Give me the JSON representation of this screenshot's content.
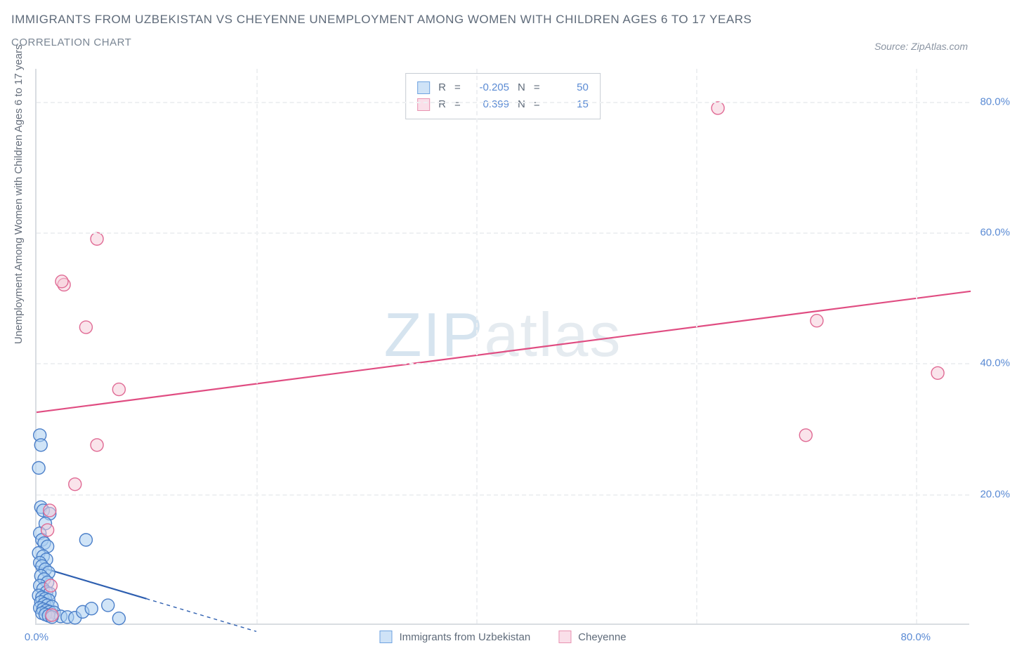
{
  "title": "IMMIGRANTS FROM UZBEKISTAN VS CHEYENNE UNEMPLOYMENT AMONG WOMEN WITH CHILDREN AGES 6 TO 17 YEARS",
  "subtitle": "CORRELATION CHART",
  "source": "Source: ZipAtlas.com",
  "watermark_a": "ZIP",
  "watermark_b": "atlas",
  "ylabel": "Unemployment Among Women with Children Ages 6 to 17 years",
  "chart": {
    "type": "scatter",
    "xlim": [
      0,
      85
    ],
    "ylim": [
      0,
      85
    ],
    "xticks": [
      {
        "v": 0,
        "label": "0.0%"
      },
      {
        "v": 80,
        "label": "80.0%"
      }
    ],
    "yticks": [
      {
        "v": 20,
        "label": "20.0%"
      },
      {
        "v": 40,
        "label": "40.0%"
      },
      {
        "v": 60,
        "label": "60.0%"
      },
      {
        "v": 80,
        "label": "80.0%"
      }
    ],
    "grid_color": "#eef0f2",
    "axis_color": "#d9dde2",
    "background_color": "#ffffff",
    "marker_radius": 9,
    "marker_stroke_width": 1.4,
    "trend_width": 2.2,
    "series": [
      {
        "name": "Immigrants from Uzbekistan",
        "fill": "#a9cdf0",
        "stroke": "#4b7fc9",
        "fill_opacity": 0.55,
        "legend_fill": "#cfe3f7",
        "legend_stroke": "#6fa3e0",
        "R": "-0.205",
        "N": "50",
        "trend": {
          "x1": 0,
          "y1": 9,
          "x2": 10,
          "y2": 4,
          "color": "#2e5fb0",
          "dash_ext": {
            "x1": 10,
            "y1": 4,
            "x2": 20,
            "y2": -1
          }
        },
        "points": [
          [
            0.3,
            29
          ],
          [
            0.4,
            27.5
          ],
          [
            0.2,
            24
          ],
          [
            0.4,
            18
          ],
          [
            0.6,
            17.5
          ],
          [
            1.2,
            17
          ],
          [
            0.8,
            15.5
          ],
          [
            0.3,
            14
          ],
          [
            0.5,
            13
          ],
          [
            0.7,
            12.5
          ],
          [
            1.0,
            12
          ],
          [
            4.5,
            13
          ],
          [
            0.2,
            11
          ],
          [
            0.6,
            10.5
          ],
          [
            0.9,
            10
          ],
          [
            0.3,
            9.5
          ],
          [
            0.5,
            9
          ],
          [
            0.8,
            8.5
          ],
          [
            1.1,
            8
          ],
          [
            0.4,
            7.5
          ],
          [
            0.7,
            7
          ],
          [
            1.0,
            6.5
          ],
          [
            0.3,
            6
          ],
          [
            0.6,
            5.5
          ],
          [
            0.9,
            5
          ],
          [
            1.2,
            4.8
          ],
          [
            0.2,
            4.5
          ],
          [
            0.5,
            4.2
          ],
          [
            0.8,
            4
          ],
          [
            1.1,
            3.8
          ],
          [
            0.4,
            3.5
          ],
          [
            0.7,
            3.2
          ],
          [
            1.0,
            3
          ],
          [
            1.4,
            2.8
          ],
          [
            0.3,
            2.6
          ],
          [
            0.6,
            2.4
          ],
          [
            0.9,
            2.2
          ],
          [
            1.2,
            2
          ],
          [
            1.6,
            1.9
          ],
          [
            0.5,
            1.8
          ],
          [
            0.8,
            1.6
          ],
          [
            1.1,
            1.4
          ],
          [
            2.2,
            1.3
          ],
          [
            1.4,
            1.2
          ],
          [
            2.8,
            1.2
          ],
          [
            3.5,
            1.1
          ],
          [
            4.2,
            2.0
          ],
          [
            5.0,
            2.5
          ],
          [
            6.5,
            3.0
          ],
          [
            7.5,
            1.0
          ]
        ]
      },
      {
        "name": "Cheyenne",
        "fill": "#f6c9d8",
        "stroke": "#e06a94",
        "fill_opacity": 0.5,
        "legend_fill": "#fadfe9",
        "legend_stroke": "#e892b1",
        "R": "0.399",
        "N": "15",
        "trend": {
          "x1": 0,
          "y1": 32.5,
          "x2": 85,
          "y2": 51,
          "color": "#e04d82"
        },
        "points": [
          [
            62,
            79
          ],
          [
            71,
            46.5
          ],
          [
            82,
            38.5
          ],
          [
            70,
            29
          ],
          [
            2.5,
            52
          ],
          [
            2.3,
            52.5
          ],
          [
            5.5,
            59
          ],
          [
            4.5,
            45.5
          ],
          [
            7.5,
            36
          ],
          [
            5.5,
            27.5
          ],
          [
            3.5,
            21.5
          ],
          [
            1.2,
            17.5
          ],
          [
            1.0,
            14.5
          ],
          [
            1.4,
            1.5
          ],
          [
            1.3,
            6
          ]
        ]
      }
    ]
  },
  "colors": {
    "title": "#5f6b7a",
    "subtitle": "#7a8694",
    "tick": "#5b8bd4",
    "watermark_a": "#d6e4ef",
    "watermark_b": "#e5ebf0"
  }
}
